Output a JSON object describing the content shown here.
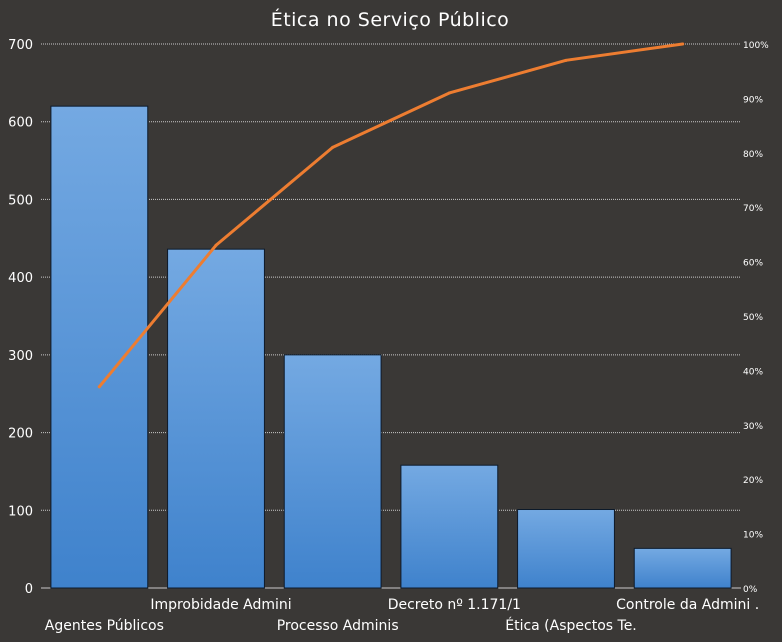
{
  "chart_data": {
    "type": "bar",
    "title": "Ética no Serviço Público",
    "xlabel": "",
    "ylabel": "",
    "categories": [
      "Agentes Públicos",
      "Improbidade  Admini",
      "Processo Adminis",
      "Decreto nº 1.171/1",
      "Ética (Aspectos Te.",
      "Controle  da Admini ."
    ],
    "series": [
      {
        "type": "bar",
        "values": [
          620,
          436,
          300,
          158,
          101,
          51
        ]
      },
      {
        "type": "line",
        "axis": "right",
        "values": [
          37,
          63,
          81,
          91,
          97,
          100
        ]
      }
    ],
    "ylim": [
      0,
      700
    ],
    "yticks": [
      0,
      100,
      200,
      300,
      400,
      500,
      600,
      700
    ],
    "y2lim": [
      0,
      100
    ],
    "y2ticks": [
      "0%",
      "10%",
      "20%",
      "30%",
      "40%",
      "50%",
      "60%",
      "70%",
      "80%",
      "90%",
      "100%"
    ],
    "grid": true,
    "colors": {
      "background": "#3a3836",
      "bar_top": "#74a9e2",
      "bar_bottom": "#3f82cc",
      "bar_stroke": "#0d1a2b",
      "line": "#ed7d31",
      "gridline": "#d9d9d9",
      "text": "#ffffff"
    }
  }
}
